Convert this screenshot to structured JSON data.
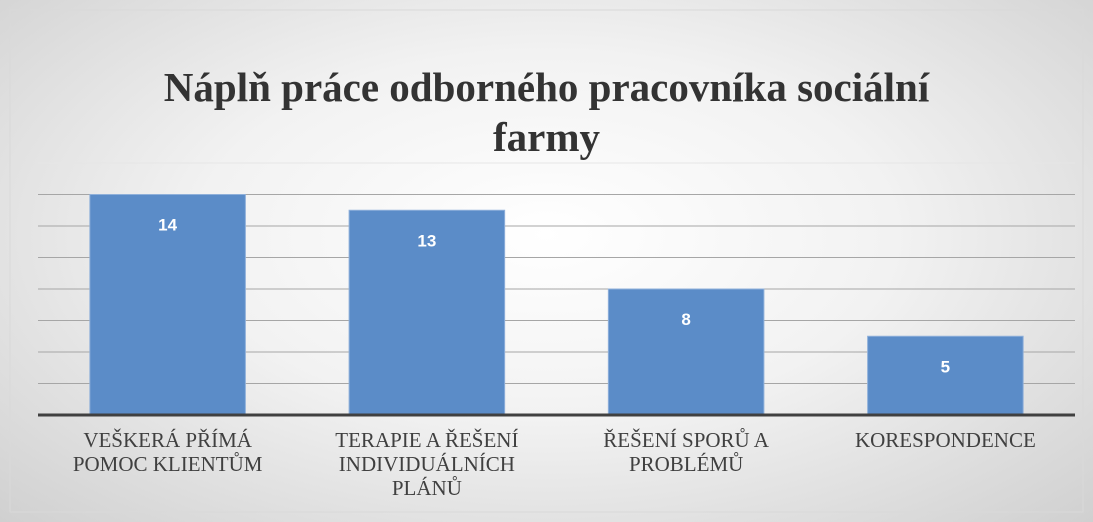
{
  "chart_data": {
    "type": "bar",
    "title": "Náplň práce odborného pracovníka sociální farmy",
    "categories": [
      "VEŠKERÁ PŘÍMÁ POMOC KLIENTŮM",
      "TERAPIE A ŘEŠENÍ INDIVIDUÁLNÍCH PLÁNŮ",
      "ŘEŠENÍ SPORŮ A PROBLÉMŮ",
      "KORESPONDENCE"
    ],
    "values": [
      14,
      13,
      8,
      5
    ],
    "color": "#5b8cc8",
    "ylim": [
      0,
      16
    ],
    "yticks": [
      0,
      2,
      4,
      6,
      8,
      10,
      12,
      14,
      16
    ],
    "grid": true
  }
}
